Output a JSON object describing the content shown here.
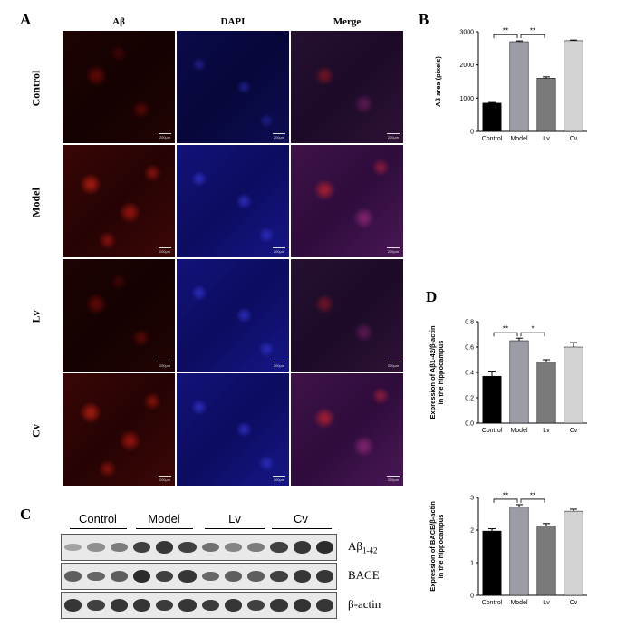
{
  "figure": {
    "panels": {
      "a": "A",
      "b": "B",
      "c": "C",
      "d": "D"
    },
    "microscopy": {
      "columns": [
        "Aβ",
        "DAPI",
        "Merge"
      ],
      "rows": [
        "Control",
        "Model",
        "Lv",
        "Cv"
      ],
      "scale_bar": "200μm"
    },
    "western_blot": {
      "groups": [
        "Control",
        "Model",
        "Lv",
        "Cv"
      ],
      "lanes_per_group": 3,
      "blots": [
        {
          "label_main": "Aβ",
          "label_sub": "1-42",
          "intensity": [
            0.35,
            0.45,
            0.55,
            0.85,
            0.9,
            0.85,
            0.6,
            0.5,
            0.55,
            0.85,
            0.9,
            0.95
          ]
        },
        {
          "label_main": "BACE",
          "label_sub": "",
          "intensity": [
            0.7,
            0.65,
            0.7,
            0.95,
            0.85,
            0.9,
            0.65,
            0.7,
            0.7,
            0.85,
            0.9,
            0.9
          ]
        },
        {
          "label_main": "β-actin",
          "label_sub": "",
          "intensity": [
            0.9,
            0.85,
            0.9,
            0.9,
            0.88,
            0.9,
            0.88,
            0.9,
            0.85,
            0.9,
            0.92,
            0.9
          ]
        }
      ]
    }
  },
  "chart_data": [
    {
      "type": "bar",
      "panel": "B",
      "categories": [
        "Control",
        "Model",
        "Lv",
        "Cv"
      ],
      "values": [
        850,
        2700,
        1600,
        2730
      ],
      "errors": [
        20,
        25,
        40,
        20
      ],
      "ylabel": "Aβ area (pixels)",
      "ylim": [
        0,
        3000
      ],
      "yticks": [
        0,
        1000,
        2000,
        3000
      ],
      "colors": [
        "#000000",
        "#9c9ca6",
        "#7a7a7a",
        "#d2d2d2"
      ],
      "significance": [
        {
          "from": 0,
          "to": 1,
          "label": "**"
        },
        {
          "from": 1,
          "to": 2,
          "label": "**"
        }
      ]
    },
    {
      "type": "bar",
      "panel": "D",
      "categories": [
        "Control",
        "Model",
        "Lv",
        "Cv"
      ],
      "values": [
        0.37,
        0.65,
        0.48,
        0.6
      ],
      "errors": [
        0.04,
        0.02,
        0.02,
        0.035
      ],
      "ylabel_lines": [
        "Expression of Aβ1-42/β-actin",
        "in the hippocampus"
      ],
      "ylim": [
        0,
        0.8
      ],
      "yticks": [
        0.0,
        0.2,
        0.4,
        0.6,
        0.8
      ],
      "colors": [
        "#000000",
        "#9c9ca6",
        "#7a7a7a",
        "#d2d2d2"
      ],
      "significance": [
        {
          "from": 0,
          "to": 1,
          "label": "**"
        },
        {
          "from": 1,
          "to": 2,
          "label": "*"
        }
      ]
    },
    {
      "type": "bar",
      "panel": "D",
      "categories": [
        "Control",
        "Model",
        "Lv",
        "Cv"
      ],
      "values": [
        1.97,
        2.7,
        2.12,
        2.58
      ],
      "errors": [
        0.07,
        0.08,
        0.08,
        0.06
      ],
      "ylabel_lines": [
        "Expression of BACE/β-actin",
        "in the hippocampus"
      ],
      "ylim": [
        0,
        3
      ],
      "yticks": [
        0,
        1,
        2,
        3
      ],
      "colors": [
        "#000000",
        "#9c9ca6",
        "#7a7a7a",
        "#d2d2d2"
      ],
      "significance": [
        {
          "from": 0,
          "to": 1,
          "label": "**"
        },
        {
          "from": 1,
          "to": 2,
          "label": "**"
        }
      ]
    }
  ]
}
